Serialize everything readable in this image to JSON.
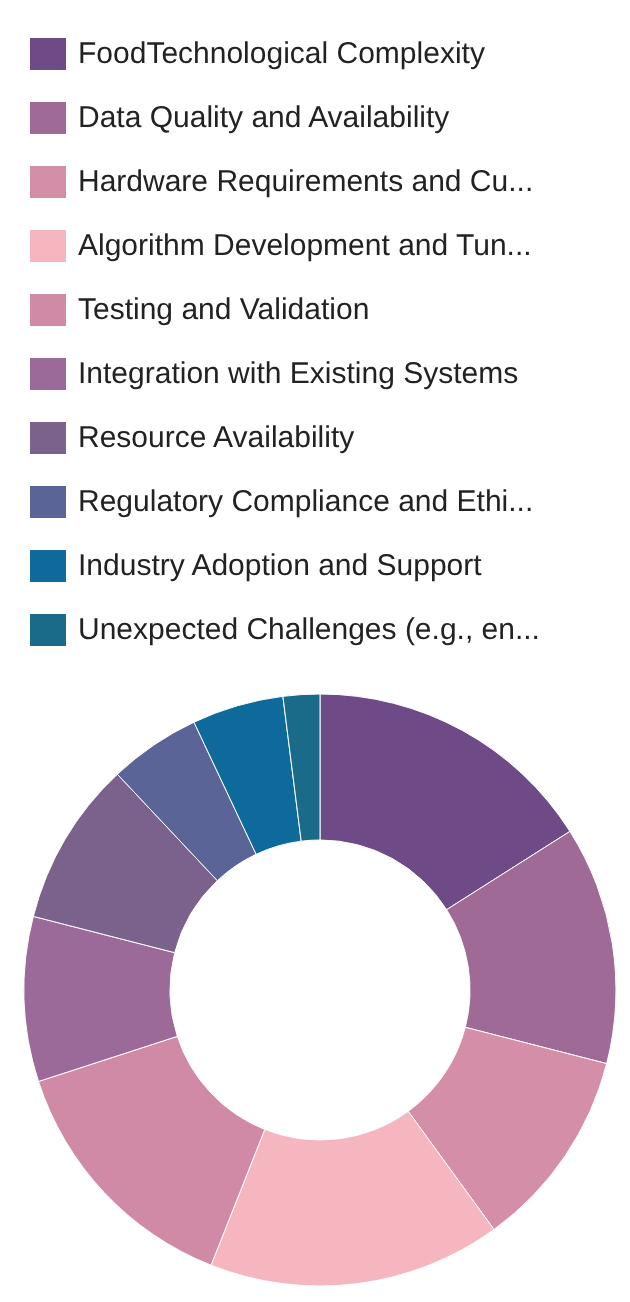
{
  "chart_data": {
    "type": "donut",
    "categories": [
      "FoodTechnological Complexity",
      "Data Quality and Availability",
      "Hardware Requirements and Cu...",
      "Algorithm Development and Tun...",
      "Testing and Validation",
      "Integration with Existing Systems",
      "Resource Availability",
      "Regulatory Compliance and Ethi...",
      "Industry Adoption and Support",
      "Unexpected Challenges (e.g., en..."
    ],
    "values": [
      16,
      13,
      11,
      16,
      14,
      9,
      9,
      5,
      5,
      2
    ],
    "colors": [
      "#6e4a86",
      "#a06a96",
      "#d48ea8",
      "#f6b6c0",
      "#d08aa6",
      "#9c6a98",
      "#7a628c",
      "#5a6496",
      "#0e6a9a",
      "#1a6a8a"
    ],
    "legend": "top"
  }
}
